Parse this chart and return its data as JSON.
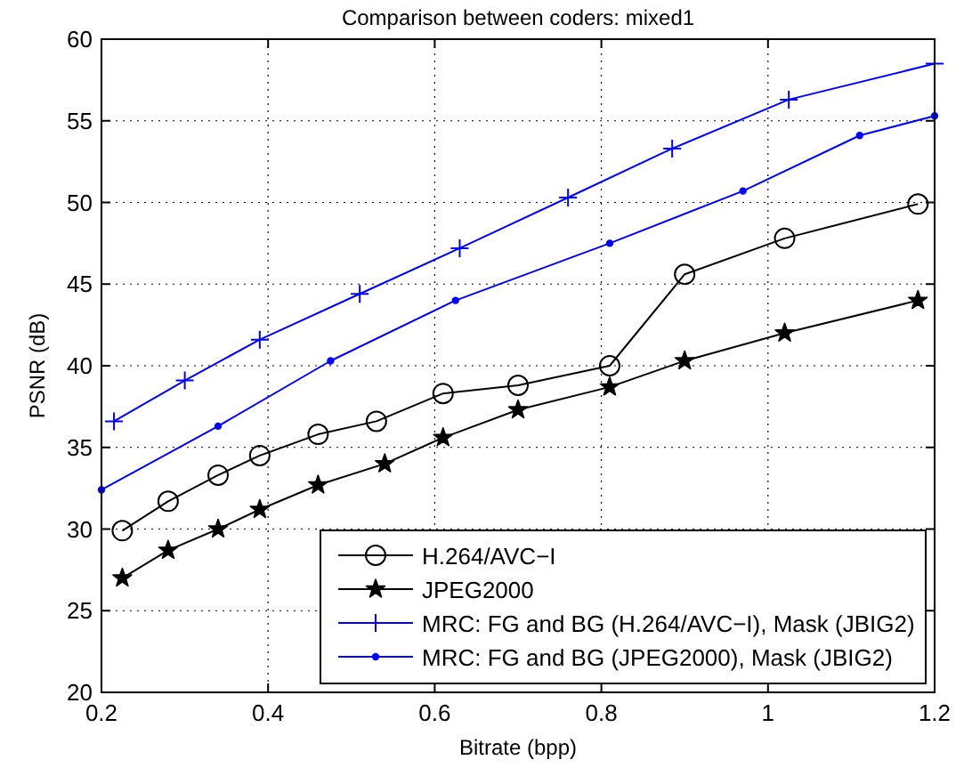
{
  "chart_data": {
    "type": "line",
    "title": "Comparison between coders: mixed1",
    "xlabel": "Bitrate (bpp)",
    "ylabel": "PSNR (dB)",
    "xlim": [
      0.2,
      1.2
    ],
    "xticks": [
      0.2,
      0.4,
      0.6,
      0.8,
      1,
      1.2
    ],
    "ylim": [
      20,
      60
    ],
    "yticks": [
      20,
      25,
      30,
      35,
      40,
      45,
      50,
      55,
      60
    ],
    "grid": true,
    "legend": "bottom right",
    "line_style": "solid",
    "series": [
      {
        "name": "H.264/AVC−I",
        "color": "#000000",
        "marker": "circle",
        "x": [
          0.225,
          0.28,
          0.34,
          0.39,
          0.46,
          0.53,
          0.61,
          0.7,
          0.81,
          0.9,
          1.02,
          1.18
        ],
        "values": [
          29.9,
          31.7,
          33.3,
          34.5,
          35.8,
          36.6,
          38.3,
          38.8,
          40.0,
          45.6,
          47.8,
          49.9
        ]
      },
      {
        "name": "JPEG2000",
        "color": "#000000",
        "marker": "star",
        "x": [
          0.225,
          0.28,
          0.34,
          0.39,
          0.46,
          0.54,
          0.61,
          0.7,
          0.81,
          0.9,
          1.02,
          1.18
        ],
        "values": [
          27.0,
          28.7,
          30.0,
          31.2,
          32.7,
          34.0,
          35.6,
          37.3,
          38.7,
          40.3,
          42.0,
          44.0
        ]
      },
      {
        "name": "MRC: FG and BG (H.264/AVC−I), Mask (JBIG2)",
        "color": "#0000ff",
        "marker": "cross",
        "x": [
          0.215,
          0.3,
          0.39,
          0.51,
          0.63,
          0.76,
          0.885,
          1.025,
          1.2
        ],
        "values": [
          36.6,
          39.1,
          41.6,
          44.4,
          47.2,
          50.3,
          53.3,
          56.3,
          58.5
        ]
      },
      {
        "name": "MRC: FG and BG (JPEG2000), Mask (JBIG2)",
        "color": "#0000ff",
        "marker": "circle-small",
        "x": [
          0.2,
          0.34,
          0.475,
          0.625,
          0.81,
          0.97,
          1.11,
          1.2
        ],
        "values": [
          32.4,
          36.3,
          40.3,
          44.0,
          47.5,
          50.7,
          54.1,
          55.3
        ]
      }
    ]
  }
}
